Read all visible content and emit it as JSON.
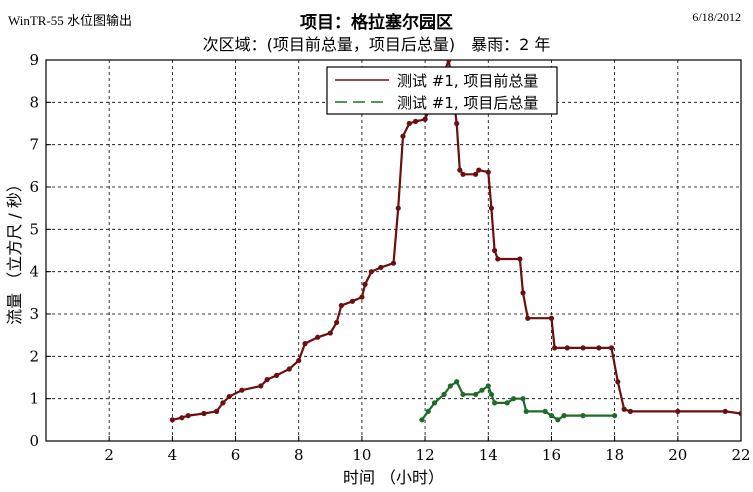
{
  "header": {
    "app_title": "WinTR-55 水位图输出",
    "project_title": "项目：格拉塞尔园区",
    "subtitle": "次区域：(项目前总量，项目后总量)　暴雨：2 年",
    "date": "6/18/2012"
  },
  "chart_data": {
    "type": "line",
    "title": "项目：格拉塞尔园区",
    "subtitle": "次区域：(项目前总量，项目后总量)　暴雨：2 年",
    "xlabel": "时间 （小时）",
    "ylabel": "流量 （立方尺 / 秒）",
    "xlim": [
      0,
      22
    ],
    "ylim": [
      0,
      9
    ],
    "x_ticks": [
      2,
      4,
      6,
      8,
      10,
      12,
      14,
      16,
      18,
      20,
      22
    ],
    "y_ticks": [
      0,
      1,
      2,
      3,
      4,
      5,
      6,
      7,
      8,
      9
    ],
    "grid": true,
    "legend_position": "top-center",
    "series": [
      {
        "name": "测试 #1, 项目前总量",
        "color": "#6b0f0f",
        "style": "solid",
        "points": [
          [
            4.0,
            0.5
          ],
          [
            4.3,
            0.55
          ],
          [
            4.5,
            0.6
          ],
          [
            5.0,
            0.65
          ],
          [
            5.4,
            0.7
          ],
          [
            5.6,
            0.9
          ],
          [
            5.8,
            1.05
          ],
          [
            6.2,
            1.2
          ],
          [
            6.8,
            1.3
          ],
          [
            7.0,
            1.45
          ],
          [
            7.3,
            1.55
          ],
          [
            7.7,
            1.7
          ],
          [
            8.0,
            1.9
          ],
          [
            8.2,
            2.3
          ],
          [
            8.6,
            2.45
          ],
          [
            9.0,
            2.55
          ],
          [
            9.2,
            2.8
          ],
          [
            9.35,
            3.2
          ],
          [
            9.7,
            3.3
          ],
          [
            10.0,
            3.4
          ],
          [
            10.1,
            3.7
          ],
          [
            10.3,
            4.0
          ],
          [
            10.6,
            4.1
          ],
          [
            11.0,
            4.2
          ],
          [
            11.15,
            5.5
          ],
          [
            11.3,
            7.2
          ],
          [
            11.5,
            7.5
          ],
          [
            11.7,
            7.55
          ],
          [
            12.0,
            7.6
          ],
          [
            12.5,
            8.5
          ],
          [
            12.75,
            9.0
          ],
          [
            13.0,
            7.5
          ],
          [
            13.1,
            6.4
          ],
          [
            13.2,
            6.3
          ],
          [
            13.6,
            6.3
          ],
          [
            13.7,
            6.4
          ],
          [
            14.0,
            6.35
          ],
          [
            14.1,
            5.5
          ],
          [
            14.2,
            4.5
          ],
          [
            14.3,
            4.3
          ],
          [
            15.0,
            4.3
          ],
          [
            15.1,
            3.5
          ],
          [
            15.25,
            2.9
          ],
          [
            16.0,
            2.9
          ],
          [
            16.1,
            2.2
          ],
          [
            16.5,
            2.2
          ],
          [
            17.0,
            2.2
          ],
          [
            17.5,
            2.2
          ],
          [
            17.9,
            2.2
          ],
          [
            18.1,
            1.4
          ],
          [
            18.3,
            0.75
          ],
          [
            18.5,
            0.7
          ],
          [
            20.0,
            0.7
          ],
          [
            21.5,
            0.7
          ],
          [
            22.0,
            0.65
          ],
          [
            22.1,
            0.5
          ]
        ]
      },
      {
        "name": "测试 #1, 项目后总量",
        "color": "#1e6b2a",
        "style": "dashed",
        "points": [
          [
            11.9,
            0.5
          ],
          [
            12.1,
            0.7
          ],
          [
            12.3,
            0.9
          ],
          [
            12.6,
            1.1
          ],
          [
            12.8,
            1.3
          ],
          [
            13.0,
            1.4
          ],
          [
            13.2,
            1.1
          ],
          [
            13.6,
            1.1
          ],
          [
            13.8,
            1.2
          ],
          [
            14.0,
            1.3
          ],
          [
            14.1,
            1.1
          ],
          [
            14.2,
            0.9
          ],
          [
            14.6,
            0.9
          ],
          [
            14.8,
            1.0
          ],
          [
            15.1,
            1.0
          ],
          [
            15.2,
            0.7
          ],
          [
            15.8,
            0.7
          ],
          [
            16.0,
            0.6
          ],
          [
            16.2,
            0.5
          ],
          [
            16.4,
            0.6
          ],
          [
            17.0,
            0.6
          ],
          [
            18.0,
            0.6
          ]
        ]
      }
    ]
  }
}
